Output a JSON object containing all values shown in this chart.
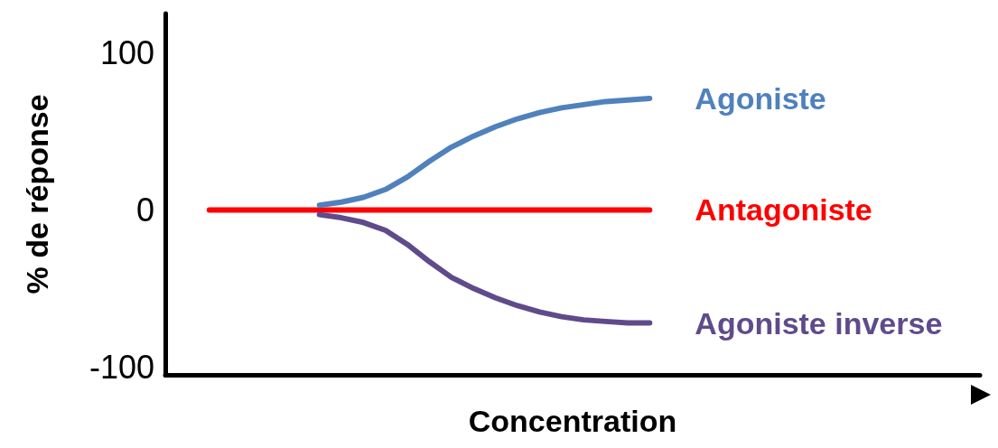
{
  "chart_data": {
    "type": "line",
    "xlabel": "Concentration",
    "ylabel": "% de réponse",
    "categories": [
      null,
      null,
      null,
      null,
      null,
      null,
      null,
      null,
      null,
      null,
      null,
      null,
      null,
      null,
      null,
      null,
      null,
      null,
      null,
      null,
      null,
      null,
      null,
      null,
      null,
      null,
      null,
      null,
      null,
      null,
      null,
      null,
      null,
      null,
      null,
      null,
      null,
      null
    ],
    "series": [
      {
        "name": "Antagoniste",
        "color": "#ff0000",
        "values": [
          null,
          null,
          0,
          0,
          0,
          0,
          0,
          0,
          0,
          0,
          0,
          0,
          0,
          0,
          0,
          0,
          0,
          0,
          0,
          0,
          0,
          0,
          0,
          null,
          null,
          null,
          null,
          null,
          null,
          null,
          null,
          null,
          null,
          null,
          null,
          null,
          null,
          null
        ]
      },
      {
        "name": "Agoniste",
        "color": "#4f81bd",
        "values": [
          null,
          null,
          null,
          null,
          null,
          null,
          null,
          3,
          5,
          8,
          13,
          21,
          31,
          40,
          47,
          53,
          58,
          62,
          65,
          67,
          69,
          70,
          71,
          null,
          null,
          null,
          null,
          null,
          null,
          null,
          null,
          null,
          null,
          null,
          null,
          null,
          null,
          null
        ]
      },
      {
        "name": "Agoniste inverse",
        "color": "#5f4b8b",
        "values": [
          null,
          null,
          null,
          null,
          null,
          null,
          null,
          -3,
          -5,
          -8,
          -13,
          -22,
          -33,
          -43,
          -50,
          -56,
          -61,
          -65,
          -68,
          -70,
          -71,
          -72,
          -72,
          null,
          null,
          null,
          null,
          null,
          null,
          null,
          null,
          null,
          null,
          null,
          null,
          null,
          null,
          null
        ]
      }
    ],
    "ylim": [
      -105,
      125
    ],
    "yticks": [
      -100,
      0,
      100
    ],
    "grid": false,
    "legend": false,
    "marker": "none",
    "line_style": "solid"
  }
}
